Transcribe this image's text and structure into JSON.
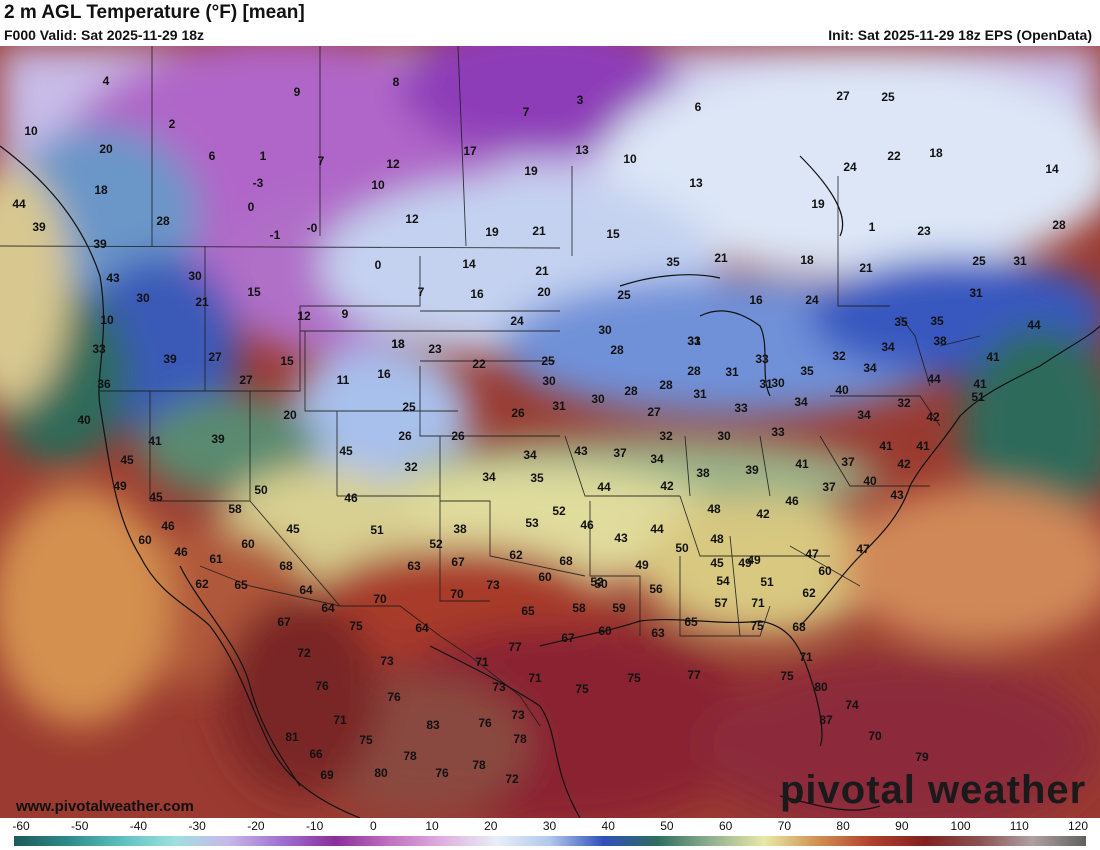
{
  "header": {
    "title": "2 m AGL Temperature (°F) [mean]",
    "valid": "F000 Valid: Sat 2025-11-29 18z",
    "init": "Init: Sat 2025-11-29 18z EPS (OpenData)"
  },
  "footer": {
    "website": "www.pivotalweather.com",
    "brand": "pivotal weather"
  },
  "colorbar": {
    "ticks": [
      "-60",
      "-50",
      "-40",
      "-30",
      "-20",
      "-10",
      "0",
      "10",
      "20",
      "30",
      "40",
      "50",
      "60",
      "70",
      "80",
      "90",
      "100",
      "110",
      "120"
    ],
    "stops": [
      "#1e5a5a",
      "#2e8a8a",
      "#5cc0c0",
      "#9fe0e0",
      "#c8b8e8",
      "#a070d0",
      "#8a2f9a",
      "#c070c0",
      "#e0b0e0",
      "#e8eef8",
      "#b0c8ec",
      "#3050b8",
      "#2e6e60",
      "#90b090",
      "#e8e8a8",
      "#d09050",
      "#b04030",
      "#802020",
      "#8a5050",
      "#b0a0a0",
      "#606060"
    ]
  },
  "map": {
    "values": [
      {
        "t": "4"
      },
      {
        "t": "9"
      },
      {
        "t": "8"
      },
      {
        "t": "3"
      },
      {
        "t": "6"
      },
      {
        "t": "27"
      },
      {
        "t": "25"
      },
      {
        "t": "10"
      },
      {
        "t": "2"
      },
      {
        "t": "7"
      },
      {
        "t": "13"
      },
      {
        "t": "10"
      },
      {
        "t": "17"
      },
      {
        "t": "22"
      },
      {
        "t": "18"
      },
      {
        "t": "14"
      },
      {
        "t": "20"
      },
      {
        "t": "6"
      },
      {
        "t": "1"
      },
      {
        "t": "7"
      },
      {
        "t": "12"
      },
      {
        "t": "19"
      },
      {
        "t": "13"
      },
      {
        "t": "24"
      },
      {
        "t": "18"
      },
      {
        "t": "-3"
      },
      {
        "t": "10"
      },
      {
        "t": "19"
      },
      {
        "t": "44"
      },
      {
        "t": "0"
      },
      {
        "t": "28"
      },
      {
        "t": "12"
      },
      {
        "t": "-1"
      },
      {
        "t": "-0"
      },
      {
        "t": "19"
      },
      {
        "t": "21"
      },
      {
        "t": "15"
      },
      {
        "t": "1"
      },
      {
        "t": "23"
      },
      {
        "t": "28"
      },
      {
        "t": "39"
      },
      {
        "t": "39"
      },
      {
        "t": "0"
      },
      {
        "t": "14"
      },
      {
        "t": "21"
      },
      {
        "t": "21"
      },
      {
        "t": "18"
      },
      {
        "t": "21"
      },
      {
        "t": "25"
      },
      {
        "t": "31"
      },
      {
        "t": "43"
      },
      {
        "t": "30"
      },
      {
        "t": "15"
      },
      {
        "t": "7"
      },
      {
        "t": "20"
      },
      {
        "t": "16"
      },
      {
        "t": "25"
      },
      {
        "t": "16"
      },
      {
        "t": "24"
      },
      {
        "t": "31"
      },
      {
        "t": "35"
      },
      {
        "t": "30"
      },
      {
        "t": "21"
      },
      {
        "t": "12"
      },
      {
        "t": "9"
      },
      {
        "t": "18"
      },
      {
        "t": "23"
      },
      {
        "t": "30"
      },
      {
        "t": "33"
      },
      {
        "t": "35"
      },
      {
        "t": "35"
      },
      {
        "t": "44"
      },
      {
        "t": "10"
      },
      {
        "t": "18"
      },
      {
        "t": "24"
      },
      {
        "t": "28"
      },
      {
        "t": "31"
      },
      {
        "t": "33"
      },
      {
        "t": "32"
      },
      {
        "t": "34"
      },
      {
        "t": "38"
      },
      {
        "t": "41"
      },
      {
        "t": "33"
      },
      {
        "t": "39"
      },
      {
        "t": "27"
      },
      {
        "t": "15"
      },
      {
        "t": "11"
      },
      {
        "t": "16"
      },
      {
        "t": "22"
      },
      {
        "t": "25"
      },
      {
        "t": "30"
      },
      {
        "t": "28"
      },
      {
        "t": "31"
      },
      {
        "t": "31"
      },
      {
        "t": "35"
      },
      {
        "t": "34"
      },
      {
        "t": "44"
      },
      {
        "t": "41"
      },
      {
        "t": "36"
      },
      {
        "t": "27"
      },
      {
        "t": "28"
      },
      {
        "t": "28"
      },
      {
        "t": "31"
      },
      {
        "t": "30"
      },
      {
        "t": "40"
      },
      {
        "t": "51"
      },
      {
        "t": "40"
      },
      {
        "t": "20"
      },
      {
        "t": "25"
      },
      {
        "t": "26"
      },
      {
        "t": "31"
      },
      {
        "t": "30"
      },
      {
        "t": "27"
      },
      {
        "t": "33"
      },
      {
        "t": "34"
      },
      {
        "t": "32"
      },
      {
        "t": "34"
      },
      {
        "t": "42"
      },
      {
        "t": "41"
      },
      {
        "t": "39"
      },
      {
        "t": "26"
      },
      {
        "t": "26"
      },
      {
        "t": "32"
      },
      {
        "t": "30"
      },
      {
        "t": "33"
      },
      {
        "t": "41"
      },
      {
        "t": "41"
      },
      {
        "t": "45"
      },
      {
        "t": "45"
      },
      {
        "t": "32"
      },
      {
        "t": "34"
      },
      {
        "t": "43"
      },
      {
        "t": "37"
      },
      {
        "t": "34"
      },
      {
        "t": "38"
      },
      {
        "t": "39"
      },
      {
        "t": "41"
      },
      {
        "t": "37"
      },
      {
        "t": "42"
      },
      {
        "t": "49"
      },
      {
        "t": "34"
      },
      {
        "t": "35"
      },
      {
        "t": "44"
      },
      {
        "t": "42"
      },
      {
        "t": "40"
      },
      {
        "t": "45"
      },
      {
        "t": "50"
      },
      {
        "t": "46"
      },
      {
        "t": "37"
      },
      {
        "t": "46"
      },
      {
        "t": "43"
      },
      {
        "t": "58"
      },
      {
        "t": "52"
      },
      {
        "t": "48"
      },
      {
        "t": "42"
      },
      {
        "t": "46"
      },
      {
        "t": "45"
      },
      {
        "t": "51"
      },
      {
        "t": "38"
      },
      {
        "t": "53"
      },
      {
        "t": "46"
      },
      {
        "t": "43"
      },
      {
        "t": "60"
      },
      {
        "t": "60"
      },
      {
        "t": "52"
      },
      {
        "t": "44"
      },
      {
        "t": "48"
      },
      {
        "t": "49"
      },
      {
        "t": "47"
      },
      {
        "t": "47"
      },
      {
        "t": "46"
      },
      {
        "t": "61"
      },
      {
        "t": "68"
      },
      {
        "t": "63"
      },
      {
        "t": "67"
      },
      {
        "t": "62"
      },
      {
        "t": "68"
      },
      {
        "t": "50"
      },
      {
        "t": "45"
      },
      {
        "t": "49"
      },
      {
        "t": "49"
      },
      {
        "t": "62"
      },
      {
        "t": "65"
      },
      {
        "t": "64"
      },
      {
        "t": "70"
      },
      {
        "t": "73"
      },
      {
        "t": "60"
      },
      {
        "t": "52"
      },
      {
        "t": "50"
      },
      {
        "t": "56"
      },
      {
        "t": "54"
      },
      {
        "t": "51"
      },
      {
        "t": "60"
      },
      {
        "t": "64"
      },
      {
        "t": "70"
      },
      {
        "t": "65"
      },
      {
        "t": "58"
      },
      {
        "t": "59"
      },
      {
        "t": "57"
      },
      {
        "t": "71"
      },
      {
        "t": "62"
      },
      {
        "t": "67"
      },
      {
        "t": "75"
      },
      {
        "t": "64"
      },
      {
        "t": "67"
      },
      {
        "t": "60"
      },
      {
        "t": "63"
      },
      {
        "t": "65"
      },
      {
        "t": "75"
      },
      {
        "t": "68"
      },
      {
        "t": "72"
      },
      {
        "t": "73"
      },
      {
        "t": "71"
      },
      {
        "t": "77"
      },
      {
        "t": "71"
      },
      {
        "t": "76"
      },
      {
        "t": "76"
      },
      {
        "t": "73"
      },
      {
        "t": "71"
      },
      {
        "t": "75"
      },
      {
        "t": "75"
      },
      {
        "t": "77"
      },
      {
        "t": "75"
      },
      {
        "t": "80"
      },
      {
        "t": "74"
      },
      {
        "t": "71"
      },
      {
        "t": "83"
      },
      {
        "t": "76"
      },
      {
        "t": "73"
      },
      {
        "t": "87"
      },
      {
        "t": "81"
      },
      {
        "t": "75"
      },
      {
        "t": "78"
      },
      {
        "t": "70"
      },
      {
        "t": "66"
      },
      {
        "t": "78"
      },
      {
        "t": "78"
      },
      {
        "t": "79"
      },
      {
        "t": "69"
      },
      {
        "t": "80"
      },
      {
        "t": "76"
      },
      {
        "t": "72"
      }
    ]
  }
}
